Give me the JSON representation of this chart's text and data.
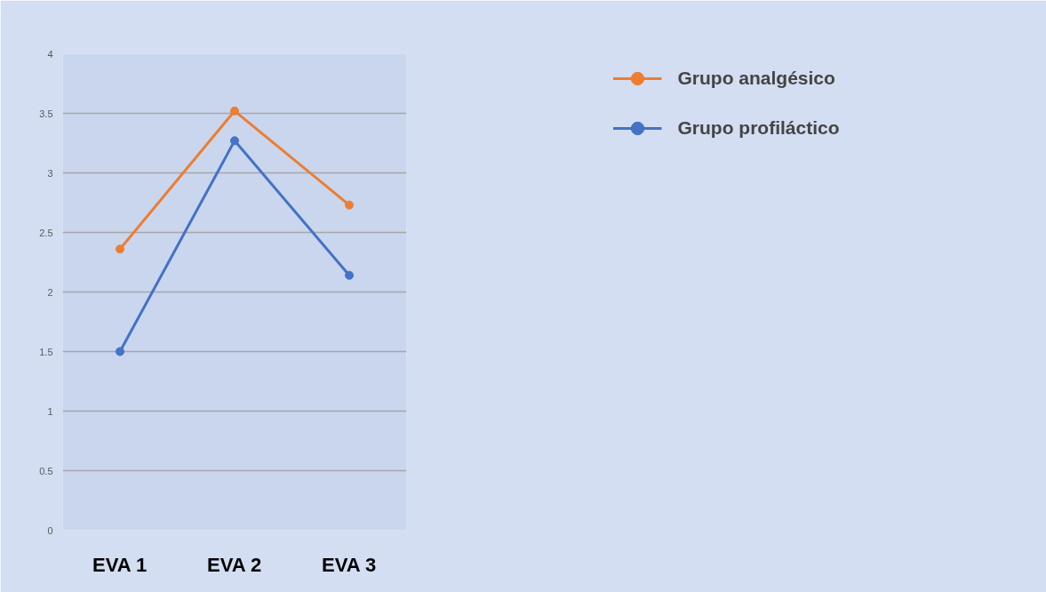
{
  "chart_data": {
    "type": "line",
    "categories": [
      "EVA 1",
      "EVA 2",
      "EVA 3"
    ],
    "series": [
      {
        "name": "Grupo analgésico",
        "color": "#ed7d31",
        "values": [
          2.36,
          3.52,
          2.73
        ]
      },
      {
        "name": "Grupo profiláctico",
        "color": "#4472c4",
        "values": [
          1.5,
          3.27,
          2.14
        ]
      }
    ],
    "ylim": [
      0,
      4
    ],
    "yticks": [
      0,
      {
        "value": 0.5,
        "label": "0.5"
      },
      1,
      {
        "value": 1.5,
        "label": "1.5"
      },
      2,
      {
        "value": 2.5,
        "label": "2.5"
      },
      3,
      {
        "value": 3.5,
        "label": "3.5"
      },
      4
    ],
    "grid": "y",
    "legend": "right",
    "marker": "circle",
    "line_style": "solid"
  }
}
